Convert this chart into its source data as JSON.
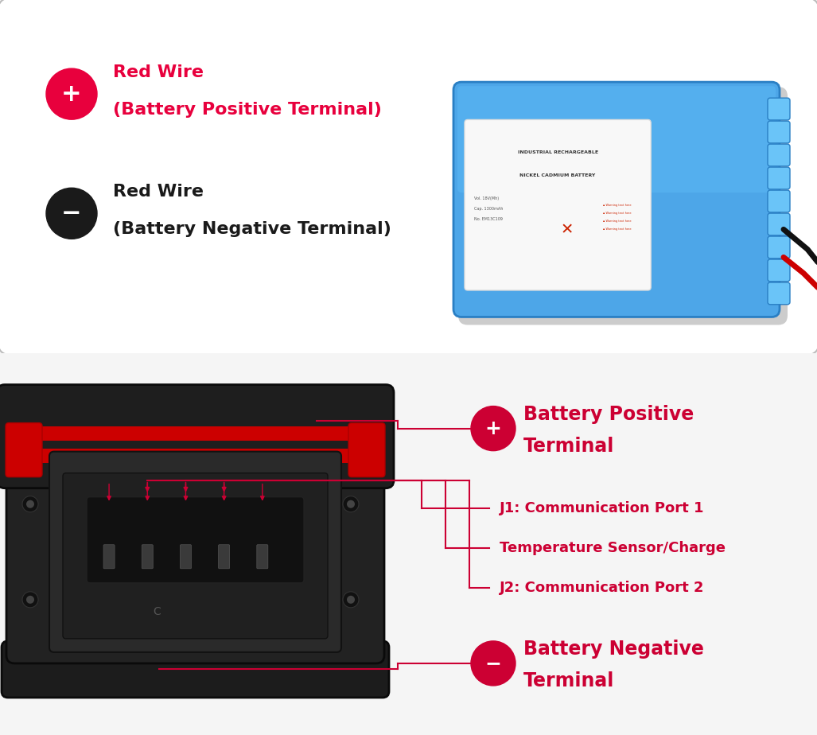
{
  "bg_color": "#f5f5f5",
  "top_box_bg": "#ffffff",
  "top_box_border": "#cccccc",
  "red_color": "#e8003d",
  "pink_red": "#e8003d",
  "black_color": "#1a1a1a",
  "dark_red_line": "#cc0033",
  "line_color": "#cc0033",
  "top_panel": {
    "positive_line1": "Red Wire",
    "positive_line2": "(Battery Positive Terminal)",
    "negative_line1": "Red Wire",
    "negative_line2": "(Battery Negative Terminal)"
  },
  "bottom_panel": {
    "label_positive_1": "Battery Positive",
    "label_positive_2": "Terminal",
    "label_j1": "J1: Communication Port 1",
    "label_temp": "Temperature Sensor/Charge",
    "label_j2": "J2: Communication Port 2",
    "label_negative_1": "Battery Negative",
    "label_negative_2": "Terminal"
  },
  "battery_blue": "#4da6e8",
  "battery_blue_dark": "#2a7fc4",
  "battery_blue_top": "#5bb8f5",
  "battery_bump_color": "#6ac4f8",
  "battery_label_bg": "#ddeeff"
}
